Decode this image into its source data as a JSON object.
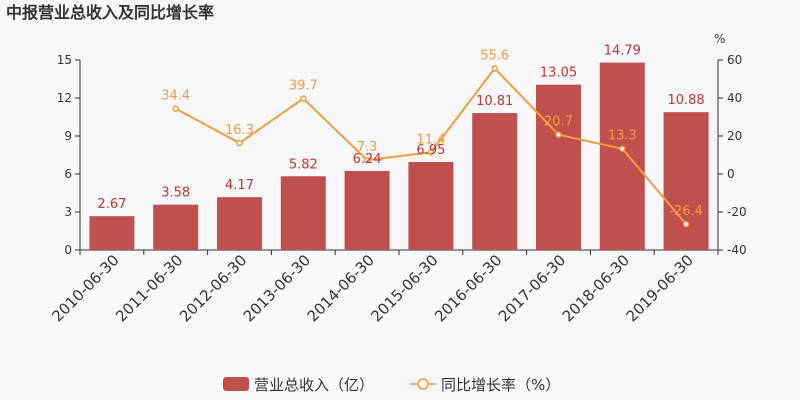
{
  "chart_data": {
    "type": "bar",
    "title": "中报营业总收入及同比增长率",
    "categories": [
      "2010-06-30",
      "2011-06-30",
      "2012-06-30",
      "2013-06-30",
      "2014-06-30",
      "2015-06-30",
      "2016-06-30",
      "2017-06-30",
      "2018-06-30",
      "2019-06-30"
    ],
    "series": [
      {
        "name": "营业总收入（亿）",
        "type": "bar",
        "axis": "left",
        "color": "#c0504d",
        "values": [
          2.67,
          3.58,
          4.17,
          5.82,
          6.24,
          6.95,
          10.81,
          13.05,
          14.79,
          10.88
        ],
        "labels": [
          "2.67",
          "3.58",
          "4.17",
          "5.82",
          "6.24",
          "6.95",
          "10.81",
          "13.05",
          "14.79",
          "10.88"
        ]
      },
      {
        "name": "同比增长率（%）",
        "type": "line",
        "axis": "right",
        "color": "#f39c3f",
        "values": [
          null,
          34.4,
          16.3,
          39.7,
          7.3,
          11.4,
          55.6,
          20.7,
          13.3,
          -26.4
        ],
        "labels": [
          "",
          "34.4",
          "16.3",
          "39.7",
          "7.3",
          "11.4",
          "55.6",
          "20.7",
          "13.3",
          "-26.4"
        ]
      }
    ],
    "y_left": {
      "min": 0,
      "max": 15,
      "ticks": [
        "0",
        "3",
        "6",
        "9",
        "12",
        "15"
      ]
    },
    "y_right": {
      "min": -40,
      "max": 60,
      "unit": "%",
      "ticks": [
        "-40",
        "-20",
        "0",
        "20",
        "40",
        "60"
      ]
    },
    "grid": false,
    "legend_position": "bottom"
  }
}
